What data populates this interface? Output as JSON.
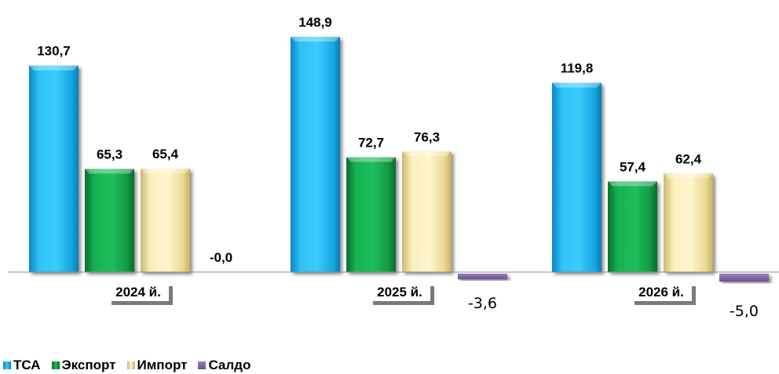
{
  "chart_data": {
    "type": "bar",
    "categories": [
      "2024 й.",
      "2025 й.",
      "2026 й."
    ],
    "series": [
      {
        "name": "ТСА",
        "values": [
          130.7,
          148.9,
          119.8
        ],
        "labels": [
          "130,7",
          "148,9",
          "119,8"
        ],
        "color": "#18B4EE"
      },
      {
        "name": "Экспорт",
        "values": [
          65.3,
          72.7,
          57.4
        ],
        "labels": [
          "65,3",
          "72,7",
          "57,4"
        ],
        "color": "#12A148"
      },
      {
        "name": "Импорт",
        "values": [
          65.4,
          76.3,
          62.4
        ],
        "labels": [
          "65,4",
          "76,3",
          "62,4"
        ],
        "color": "#F3E4A4"
      },
      {
        "name": "Салдо",
        "values": [
          -0.0,
          -3.6,
          -5.0
        ],
        "labels": [
          "-0,0",
          "-3,6",
          "-5,0"
        ],
        "color": "#8064A2"
      }
    ],
    "ylim": [
      -8,
      160
    ],
    "grid": false,
    "legend": "bottom-left"
  }
}
